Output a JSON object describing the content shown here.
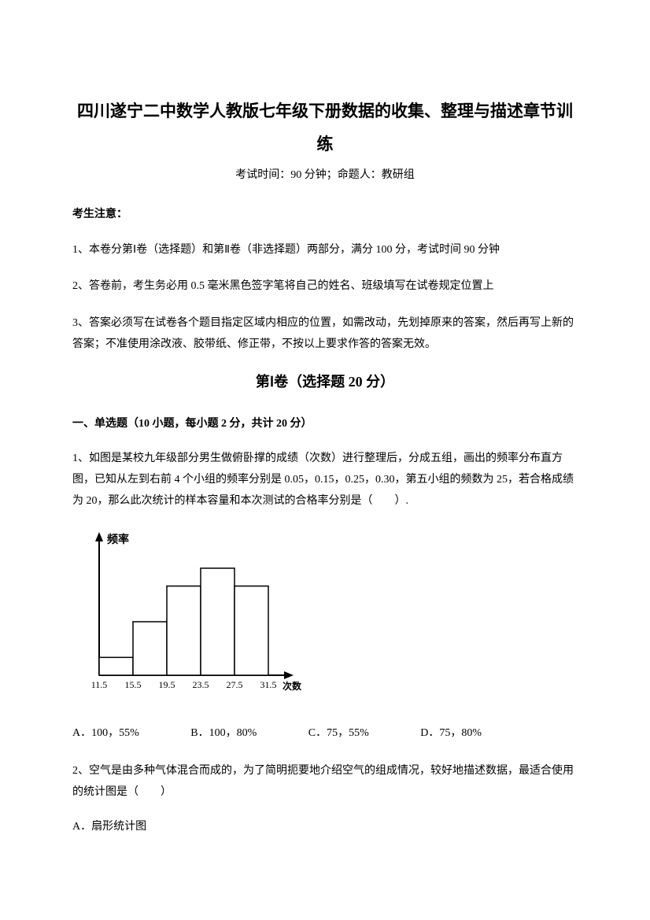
{
  "title": {
    "main": "四川遂宁二中数学人教版七年级下册数据的收集、整理与描述章节训练",
    "subtitle": "考试时间：90 分钟；命题人：教研组"
  },
  "notice": {
    "heading": "考生注意：",
    "items": [
      "1、本卷分第Ⅰ卷（选择题）和第Ⅱ卷（非选择题）两部分，满分 100 分，考试时间 90 分钟",
      "2、答卷前，考生务必用 0.5 毫米黑色签字笔将自己的姓名、班级填写在试卷规定位置上",
      "3、答案必须写在试卷各个题目指定区域内相应的位置，如需改动，先划掉原来的答案，然后再写上新的答案；不准使用涂改液、胶带纸、修正带，不按以上要求作答的答案无效。"
    ]
  },
  "section1": {
    "heading": "第Ⅰ卷（选择题  20 分）",
    "sub_heading": "一、单选题（10 小题，每小题 2 分，共计 20 分）"
  },
  "q1": {
    "text": "1、如图是某校九年级部分男生做俯卧撑的成绩（次数）进行整理后，分成五组，画出的频率分布直方图，已知从左到右前 4 个小组的频率分别是 0.05，0.15，0.25，0.30，第五小组的频数为 25，若合格成绩为 20，那么此次统计的样本容量和本次测试的合格率分别是（　　）.",
    "chart": {
      "type": "histogram",
      "y_label": "频率",
      "x_label": "次数",
      "x_ticks": [
        "11.5",
        "15.5",
        "19.5",
        "23.5",
        "27.5",
        "31.5"
      ],
      "bar_heights": [
        0.05,
        0.15,
        0.25,
        0.3,
        0.25
      ],
      "axis_color": "#000000",
      "bar_fill": "#ffffff",
      "bar_stroke": "#000000",
      "font_size": 12,
      "label_font_weight": "bold"
    },
    "options": {
      "A": "A．100，55%",
      "B": "B．100，80%",
      "C": "C．75，55%",
      "D": "D．75，80%"
    }
  },
  "q2": {
    "text": "2、空气是由多种气体混合而成的，为了简明扼要地介绍空气的组成情况，较好地描述数据，最适合使用的统计图是（　　）",
    "option_a": "A．扇形统计图"
  }
}
